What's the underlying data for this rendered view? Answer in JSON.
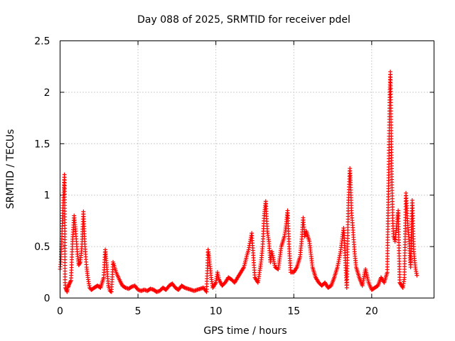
{
  "chart_data": {
    "type": "scatter",
    "title": "Day 088 of 2025, SRMTID for receiver pdel",
    "xlabel": "GPS time / hours",
    "ylabel": "SRMTID / TECUs",
    "xlim": [
      0,
      24
    ],
    "ylim": [
      0,
      2.5
    ],
    "xticks": [
      0,
      5,
      10,
      15,
      20
    ],
    "xtick_labels": [
      "0",
      "5",
      "10",
      "15",
      "20"
    ],
    "yticks": [
      0,
      0.5,
      1,
      1.5,
      2,
      2.5
    ],
    "ytick_labels": [
      "0",
      "0.5",
      "1",
      "1.5",
      "2",
      "2.5"
    ],
    "grid": true,
    "marker": "plus",
    "series": [
      {
        "name": "SRMTID",
        "color": "#ff0000",
        "x": [
          0.0,
          0.05,
          0.1,
          0.15,
          0.2,
          0.25,
          0.28,
          0.3,
          0.32,
          0.35,
          0.4,
          0.45,
          0.5,
          0.55,
          0.6,
          0.7,
          0.8,
          0.9,
          1.0,
          1.05,
          1.1,
          1.15,
          1.2,
          1.3,
          1.4,
          1.5,
          1.55,
          1.6,
          1.65,
          1.7,
          1.8,
          1.9,
          2.0,
          2.2,
          2.4,
          2.6,
          2.8,
          2.9,
          3.0,
          3.1,
          3.2,
          3.3,
          3.4,
          3.5,
          3.6,
          3.8,
          4.0,
          4.2,
          4.4,
          4.6,
          4.8,
          5.0,
          5.2,
          5.4,
          5.6,
          5.8,
          6.0,
          6.2,
          6.4,
          6.6,
          6.8,
          7.0,
          7.2,
          7.4,
          7.6,
          7.8,
          8.0,
          8.2,
          8.4,
          8.6,
          8.8,
          9.0,
          9.2,
          9.4,
          9.5,
          9.6,
          9.7,
          9.8,
          10.0,
          10.1,
          10.2,
          10.4,
          10.6,
          10.8,
          11.0,
          11.2,
          11.4,
          11.6,
          11.8,
          12.0,
          12.1,
          12.2,
          12.3,
          12.5,
          12.7,
          12.9,
          13.0,
          13.1,
          13.2,
          13.3,
          13.4,
          13.5,
          13.6,
          13.8,
          14.0,
          14.2,
          14.4,
          14.5,
          14.6,
          14.7,
          14.8,
          15.0,
          15.2,
          15.4,
          15.5,
          15.6,
          15.7,
          15.8,
          16.0,
          16.2,
          16.4,
          16.6,
          16.8,
          17.0,
          17.2,
          17.4,
          17.6,
          17.8,
          18.0,
          18.2,
          18.4,
          18.5,
          18.6,
          18.65,
          18.7,
          18.8,
          18.9,
          19.0,
          19.2,
          19.4,
          19.6,
          19.8,
          20.0,
          20.2,
          20.4,
          20.6,
          20.8,
          21.0,
          21.05,
          21.1,
          21.15,
          21.2,
          21.25,
          21.3,
          21.35,
          21.4,
          21.5,
          21.6,
          21.7,
          21.8,
          22.0,
          22.1,
          22.2,
          22.3,
          22.4,
          22.5,
          22.6,
          22.7,
          22.8,
          22.9
        ],
        "y": [
          0.28,
          0.35,
          0.55,
          0.75,
          0.95,
          1.05,
          1.2,
          0.9,
          0.15,
          0.1,
          0.08,
          0.06,
          0.1,
          0.12,
          0.14,
          0.17,
          0.55,
          0.8,
          0.65,
          0.55,
          0.45,
          0.38,
          0.32,
          0.35,
          0.5,
          0.84,
          0.65,
          0.5,
          0.4,
          0.3,
          0.18,
          0.1,
          0.08,
          0.1,
          0.12,
          0.1,
          0.2,
          0.47,
          0.3,
          0.12,
          0.07,
          0.06,
          0.35,
          0.3,
          0.25,
          0.18,
          0.12,
          0.1,
          0.09,
          0.11,
          0.12,
          0.08,
          0.07,
          0.08,
          0.07,
          0.09,
          0.08,
          0.06,
          0.07,
          0.1,
          0.08,
          0.12,
          0.14,
          0.1,
          0.08,
          0.12,
          0.1,
          0.09,
          0.08,
          0.07,
          0.08,
          0.09,
          0.1,
          0.06,
          0.47,
          0.35,
          0.2,
          0.1,
          0.15,
          0.25,
          0.18,
          0.12,
          0.15,
          0.2,
          0.18,
          0.15,
          0.2,
          0.25,
          0.3,
          0.42,
          0.47,
          0.55,
          0.63,
          0.2,
          0.15,
          0.35,
          0.5,
          0.8,
          0.94,
          0.65,
          0.55,
          0.35,
          0.45,
          0.3,
          0.28,
          0.5,
          0.6,
          0.7,
          0.85,
          0.5,
          0.25,
          0.25,
          0.3,
          0.4,
          0.55,
          0.78,
          0.6,
          0.65,
          0.55,
          0.3,
          0.2,
          0.15,
          0.12,
          0.15,
          0.1,
          0.12,
          0.2,
          0.3,
          0.45,
          0.68,
          0.1,
          0.9,
          1.26,
          1.1,
          0.85,
          0.66,
          0.45,
          0.3,
          0.2,
          0.12,
          0.28,
          0.15,
          0.08,
          0.1,
          0.12,
          0.2,
          0.15,
          0.25,
          0.8,
          1.3,
          1.9,
          2.2,
          1.6,
          1.1,
          0.75,
          0.6,
          0.55,
          0.7,
          0.85,
          0.15,
          0.1,
          0.2,
          1.02,
          0.75,
          0.55,
          0.3,
          0.95,
          0.45,
          0.3,
          0.22
        ]
      }
    ]
  }
}
